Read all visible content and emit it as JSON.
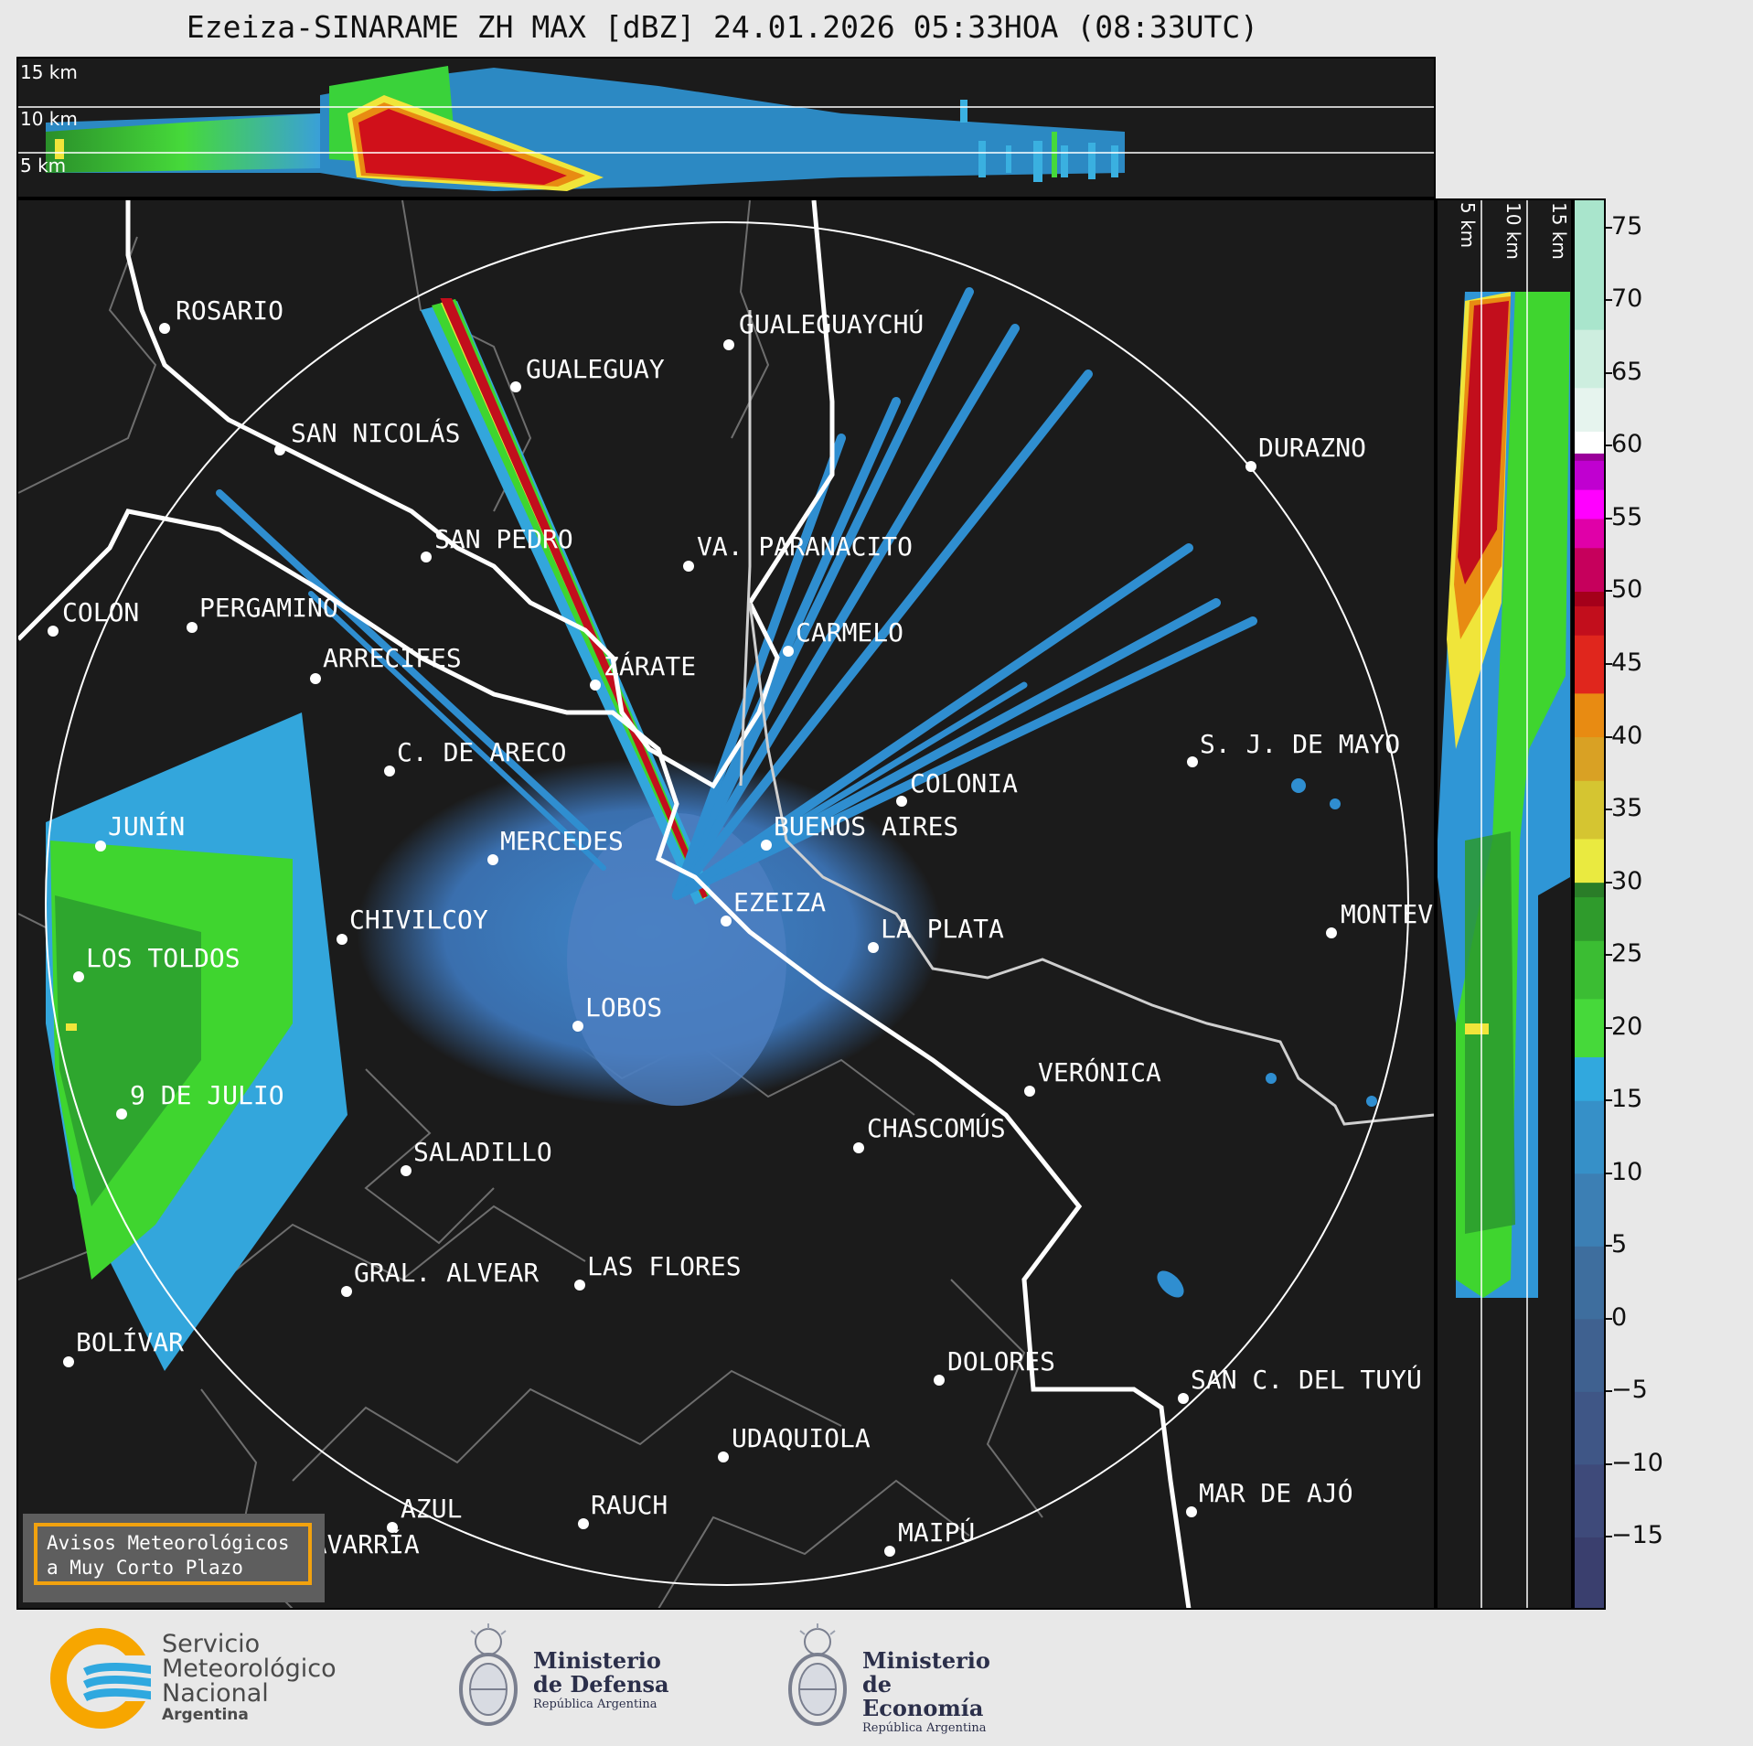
{
  "header": {
    "title": "Ezeiza-SINARAME ZH MAX [dBZ] 24.01.2026 05:33HOA (08:33UTC)"
  },
  "top_panel": {
    "height_labels": [
      "15 km",
      "10 km",
      "5 km"
    ]
  },
  "side_panel": {
    "height_labels": [
      "5 km",
      "10 km",
      "15 km"
    ]
  },
  "colorbar": {
    "ticks": [
      "75",
      "70",
      "65",
      "60",
      "55",
      "50",
      "45",
      "40",
      "35",
      "30",
      "25",
      "20",
      "15",
      "10",
      "5",
      "0",
      "−5",
      "−10",
      "−15"
    ],
    "range": [
      -20,
      77
    ]
  },
  "cities": [
    {
      "name": "ROSARIO"
    },
    {
      "name": "GUALEGUAYCHÚ"
    },
    {
      "name": "GUALEGUAY"
    },
    {
      "name": "SAN NICOLÁS"
    },
    {
      "name": "DURAZNO"
    },
    {
      "name": "SAN PEDRO"
    },
    {
      "name": "VA. PARANACITO"
    },
    {
      "name": "COLON"
    },
    {
      "name": "PERGAMINO"
    },
    {
      "name": "CARMELO"
    },
    {
      "name": "ARRECIFES"
    },
    {
      "name": "ZÁRATE"
    },
    {
      "name": "S. J. DE MAYO"
    },
    {
      "name": "C. DE ARECO"
    },
    {
      "name": "COLONIA"
    },
    {
      "name": "JUNÍN"
    },
    {
      "name": "BUENOS AIRES"
    },
    {
      "name": "MERCEDES"
    },
    {
      "name": "EZEIZA"
    },
    {
      "name": "MONTEVIDEO"
    },
    {
      "name": "CHIVILCOY"
    },
    {
      "name": "LA PLATA"
    },
    {
      "name": "LOS TOLDOS"
    },
    {
      "name": "LOBOS"
    },
    {
      "name": "VERÓNICA"
    },
    {
      "name": "9 DE JULIO"
    },
    {
      "name": "CHASCOMÚS"
    },
    {
      "name": "SALADILLO"
    },
    {
      "name": "GRAL. ALVEAR"
    },
    {
      "name": "LAS FLORES"
    },
    {
      "name": "BOLÍVAR"
    },
    {
      "name": "DOLORES"
    },
    {
      "name": "SAN C. DEL TUYÚ"
    },
    {
      "name": "UDAQUIOLA"
    },
    {
      "name": "MAR DE AJÓ"
    },
    {
      "name": "AZUL"
    },
    {
      "name": "RAUCH"
    },
    {
      "name": "MAIPÚ"
    },
    {
      "name": "OLAVARRÍA"
    }
  ],
  "warning_box": {
    "line1": "Avisos Meteorológicos",
    "line2": "a Muy Corto Plazo"
  },
  "logos": {
    "smn": {
      "line1": "Servicio",
      "line2": "Meteorológico",
      "line3": "Nacional",
      "line4": "Argentina"
    },
    "defensa": {
      "line1": "Ministerio",
      "line2": "de Defensa",
      "line3": "República Argentina"
    },
    "economia": {
      "line1": "Ministerio",
      "line2": "de Economía",
      "line3": "República Argentina"
    }
  },
  "colors": {
    "accent": "#f2a20e",
    "smn_blue": "#2fa8df",
    "smn_yellow": "#f7a600"
  }
}
